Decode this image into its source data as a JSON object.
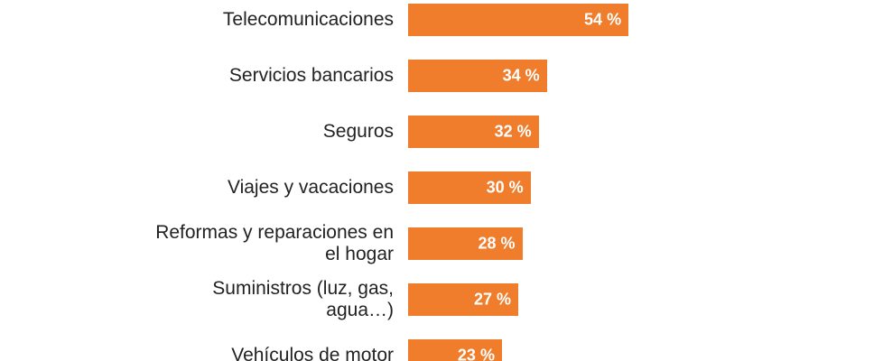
{
  "chart_data": {
    "type": "bar",
    "orientation": "horizontal",
    "categories": [
      "Telecomunicaciones",
      "Servicios bancarios",
      "Seguros",
      "Viajes y vacaciones",
      "Reformas y reparaciones en el hogar",
      "Suministros (luz, gas, agua…)",
      "Vehículos de motor"
    ],
    "values": [
      54,
      34,
      32,
      30,
      28,
      27,
      23
    ],
    "value_labels": [
      "54 %",
      "34 %",
      "32 %",
      "30 %",
      "28 %",
      "27 %",
      "23 %"
    ],
    "color": "#ef7d2c"
  }
}
